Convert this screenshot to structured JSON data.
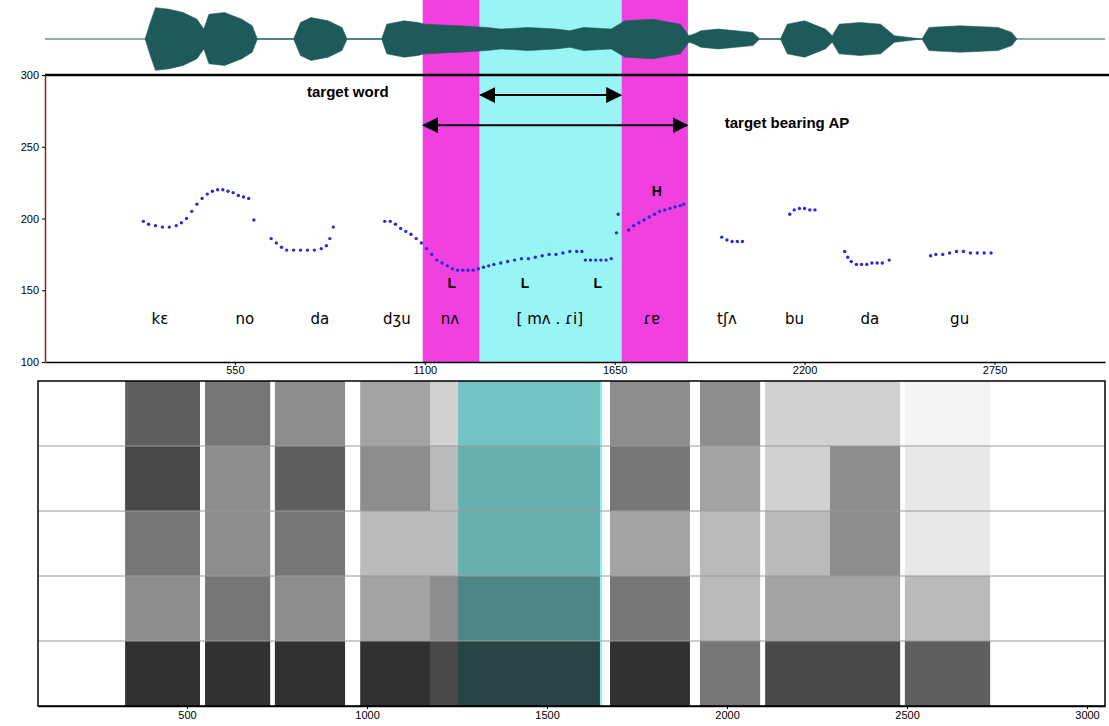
{
  "chart_data": [
    {
      "type": "area",
      "x": [
        290,
        305,
        320,
        360,
        400,
        440,
        460,
        475,
        520,
        570,
        600,
        615,
        720,
        740,
        770,
        820,
        860,
        875,
        975,
        990,
        1040,
        1080,
        1100,
        1200,
        1280,
        1320,
        1400,
        1480,
        1520,
        1560,
        1640,
        1680,
        1760,
        1840,
        1865,
        1880,
        1900,
        1950,
        2000,
        2050,
        2070,
        2130,
        2150,
        2200,
        2260,
        2280,
        2300,
        2360,
        2420,
        2460,
        2540,
        2560,
        2650,
        2760,
        2800,
        2815
      ],
      "values": [
        0,
        0.5,
        0.95,
        0.9,
        0.8,
        0.6,
        0.3,
        0.75,
        0.8,
        0.6,
        0.4,
        0,
        0,
        0.5,
        0.65,
        0.55,
        0.35,
        0,
        0,
        0.45,
        0.55,
        0.5,
        0.45,
        0.4,
        0.35,
        0.3,
        0.35,
        0.3,
        0.25,
        0.35,
        0.3,
        0.55,
        0.6,
        0.45,
        0.1,
        0.15,
        0.25,
        0.3,
        0.25,
        0.2,
        0,
        0,
        0.45,
        0.55,
        0.3,
        0.1,
        0.45,
        0.5,
        0.45,
        0.1,
        0,
        0.35,
        0.4,
        0.35,
        0.2,
        0
      ],
      "xlim": [
        0,
        3070
      ],
      "ylim": [
        -1,
        1
      ],
      "tick_labels": false,
      "color": "#1e5a5a"
    },
    {
      "type": "scatter",
      "x": [
        285,
        300,
        320,
        340,
        360,
        380,
        395,
        410,
        425,
        440,
        455,
        470,
        485,
        500,
        515,
        530,
        545,
        560,
        575,
        590,
        605,
        655,
        670,
        685,
        700,
        720,
        740,
        760,
        780,
        800,
        815,
        825,
        835,
        984,
        1000,
        1015,
        1030,
        1045,
        1060,
        1075,
        1090,
        1105,
        1120,
        1135,
        1150,
        1165,
        1180,
        1195,
        1210,
        1225,
        1240,
        1255,
        1270,
        1285,
        1300,
        1320,
        1340,
        1360,
        1380,
        1400,
        1420,
        1440,
        1460,
        1480,
        1500,
        1520,
        1540,
        1555,
        1565,
        1580,
        1595,
        1610,
        1625,
        1640,
        1655,
        1660,
        1690,
        1705,
        1720,
        1735,
        1750,
        1765,
        1780,
        1795,
        1810,
        1825,
        1840,
        1850,
        1960,
        1975,
        1990,
        2005,
        2020,
        2157,
        2170,
        2185,
        2200,
        2215,
        2230,
        2316,
        2325,
        2335,
        2350,
        2365,
        2380,
        2395,
        2410,
        2425,
        2445,
        2565,
        2580,
        2600,
        2620,
        2640,
        2660,
        2680,
        2700,
        2720,
        2740
      ],
      "values": [
        198,
        196,
        195,
        194,
        194,
        195,
        197,
        200,
        205,
        210,
        214,
        217,
        219,
        220,
        220,
        219,
        218,
        216,
        215,
        214,
        199,
        186,
        183,
        180,
        178,
        178,
        178,
        178,
        178,
        179,
        181,
        186,
        194,
        198,
        198,
        196,
        193,
        191,
        189,
        186,
        183,
        179,
        175,
        171,
        169,
        167,
        165,
        164,
        164,
        164,
        164,
        165,
        166,
        167,
        168,
        169,
        170,
        171,
        172,
        172,
        173,
        174,
        175,
        175,
        176,
        177,
        177,
        177,
        171,
        171,
        171,
        171,
        171,
        172,
        190,
        203,
        192,
        195,
        197,
        199,
        201,
        203,
        205,
        206,
        207,
        208,
        209,
        210,
        187,
        185,
        184,
        184,
        184,
        203,
        206,
        207,
        207,
        206,
        206,
        177,
        173,
        170,
        168,
        168,
        168,
        169,
        169,
        169,
        171,
        174,
        175,
        175,
        176,
        177,
        177,
        176,
        176,
        176,
        176
      ],
      "xlim": [
        0,
        3070
      ],
      "ylim": [
        100,
        300
      ],
      "xticks": [
        550,
        1100,
        1650,
        2200,
        2750
      ],
      "yticks": [
        100,
        150,
        200,
        250,
        300
      ],
      "color": "#2b2bd0",
      "marker": "circle",
      "regions": [
        {
          "start": 1094,
          "end": 1259,
          "color": "#f040e0"
        },
        {
          "start": 1259,
          "end": 1670,
          "color": "#99f4f4"
        },
        {
          "start": 1670,
          "end": 1862,
          "color": "#f040e0"
        }
      ],
      "arrows": [
        {
          "start": 1259,
          "end": 1670,
          "y": 286
        },
        {
          "start": 1094,
          "end": 1862,
          "y": 265
        }
      ],
      "labels": [
        {
          "text": "target word",
          "x": 877,
          "y": 288
        },
        {
          "text": "target bearing AP",
          "x": 2149,
          "y": 267
        }
      ],
      "tones": [
        {
          "text": "L",
          "x": 1178,
          "y": 155
        },
        {
          "text": "L",
          "x": 1390,
          "y": 155
        },
        {
          "text": "L",
          "x": 1601,
          "y": 155
        },
        {
          "text": "H",
          "x": 1772,
          "y": 219
        }
      ],
      "syllables": [
        {
          "text": "kɛ",
          "x": 333,
          "y": 130
        },
        {
          "text": "no",
          "x": 579,
          "y": 130
        },
        {
          "text": "da",
          "x": 796,
          "y": 130
        },
        {
          "text": "dʒu",
          "x": 1019,
          "y": 130
        },
        {
          "text": "nʌ",
          "x": 1173,
          "y": 130
        },
        {
          "text": "[ mʌ . ɾi]",
          "x": 1462,
          "y": 130
        },
        {
          "text": "ɾɐ",
          "x": 1757,
          "y": 130
        },
        {
          "text": "tʃʌ",
          "x": 1975,
          "y": 130
        },
        {
          "text": "bu",
          "x": 2171,
          "y": 130
        },
        {
          "text": "da",
          "x": 2389,
          "y": 130
        },
        {
          "text": "gu",
          "x": 2649,
          "y": 130
        }
      ]
    },
    {
      "type": "heatmap",
      "xlim": [
        86,
        3050
      ],
      "ylim": [
        0,
        5000
      ],
      "xticks": [
        500,
        1000,
        1500,
        2000,
        2500,
        3000
      ],
      "yticks": [
        1000,
        2000,
        3000,
        4000
      ],
      "tick_labels": "x",
      "grid": true,
      "highlight": {
        "start": 1253,
        "end": 1653,
        "color": "#8ff0f0"
      },
      "segments": [
        {
          "start": 328,
          "end": 536,
          "levels": [
            0.9,
            0.5,
            0.6,
            0.8,
            0.7
          ]
        },
        {
          "start": 550,
          "end": 731,
          "levels": [
            0.9,
            0.6,
            0.5,
            0.5,
            0.6
          ]
        },
        {
          "start": 744,
          "end": 939,
          "levels": [
            0.9,
            0.5,
            0.6,
            0.7,
            0.5
          ]
        },
        {
          "start": 981,
          "end": 1175,
          "levels": [
            0.9,
            0.4,
            0.3,
            0.5,
            0.4
          ]
        },
        {
          "start": 1175,
          "end": 1647,
          "levels": [
            0.8,
            0.5,
            0.3,
            0.3,
            0.2
          ]
        },
        {
          "start": 1675,
          "end": 1897,
          "levels": [
            0.9,
            0.6,
            0.4,
            0.6,
            0.5
          ]
        },
        {
          "start": 1925,
          "end": 2092,
          "levels": [
            0.6,
            0.3,
            0.3,
            0.4,
            0.5
          ]
        },
        {
          "start": 2106,
          "end": 2286,
          "levels": [
            0.8,
            0.4,
            0.3,
            0.2,
            0.2
          ]
        },
        {
          "start": 2286,
          "end": 2481,
          "levels": [
            0.8,
            0.4,
            0.5,
            0.5,
            0.2
          ]
        },
        {
          "start": 2494,
          "end": 2731,
          "levels": [
            0.7,
            0.3,
            0.1,
            0.1,
            0.05
          ]
        }
      ]
    }
  ]
}
